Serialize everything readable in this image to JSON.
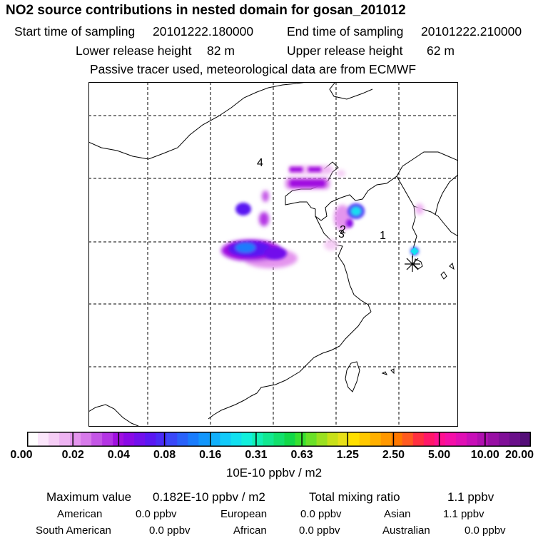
{
  "header": {
    "title": "NO2 source contributions in nested domain for gosan_201012",
    "start_label": "Start time of sampling",
    "start_value": "20101222.180000",
    "end_label": "End time of sampling",
    "end_value": "20101222.210000",
    "lower_label": "Lower release height",
    "lower_value": "82 m",
    "upper_label": "Upper release height",
    "upper_value": "62 m",
    "note": "Passive tracer used, meteorological data are from ECMWF"
  },
  "map": {
    "labels": [
      "4",
      "3",
      "2",
      "1"
    ]
  },
  "colorbar": {
    "ticks": [
      "0.00",
      "0.02",
      "0.04",
      "0.08",
      "0.16",
      "0.31",
      "0.63",
      "1.25",
      "2.50",
      "5.00",
      "10.00",
      "20.00"
    ],
    "colors": [
      "#ffffff",
      "#fbe6fb",
      "#f5cdf5",
      "#eeb4f2",
      "#e495ee",
      "#d77aea",
      "#c456e6",
      "#b434e4",
      "#a010e0",
      "#8a0ae6",
      "#7210ec",
      "#5a18f2",
      "#4a2cf6",
      "#3a48f8",
      "#2a62fa",
      "#1a7cfc",
      "#1296fc",
      "#12b0fc",
      "#12cafa",
      "#12e0f0",
      "#12f0dc",
      "#12f0b4",
      "#12e890",
      "#12e06c",
      "#12d848",
      "#38e030",
      "#6ae028",
      "#9ae020",
      "#c8e018",
      "#e8e018",
      "#ffe000",
      "#ffc800",
      "#ffb000",
      "#ff9800",
      "#ff7800",
      "#ff5a20",
      "#ff3040",
      "#ff1868",
      "#ff1090",
      "#f410a8",
      "#e010b4",
      "#c810b8",
      "#b010b0",
      "#9810a4",
      "#801098",
      "#6a108a",
      "#540e78"
    ],
    "unit": "10E-10 ppbv / m2"
  },
  "stats": {
    "max_label": "Maximum value",
    "max_value": "0.182E-10 ppbv / m2",
    "total_label": "Total mixing ratio",
    "total_value": "1.1 ppbv",
    "regions": [
      {
        "name": "American",
        "value": "0.0 ppbv"
      },
      {
        "name": "European",
        "value": "0.0 ppbv"
      },
      {
        "name": "Asian",
        "value": "1.1 ppbv"
      },
      {
        "name": "South American",
        "value": "0.0 ppbv"
      },
      {
        "name": "African",
        "value": "0.0 ppbv"
      },
      {
        "name": "Australian",
        "value": "0.0 ppbv"
      }
    ]
  }
}
